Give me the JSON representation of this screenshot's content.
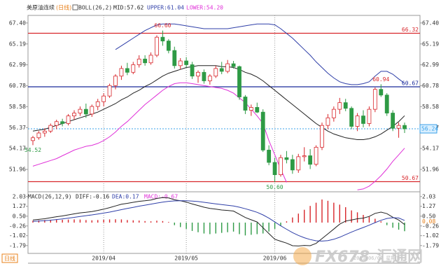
{
  "chart_data": [
    {
      "type": "candlestick",
      "title": "美原油连续",
      "subtitle": "(日线)",
      "indicator": "BOLL(26,2)",
      "categories": [
        null,
        null,
        null,
        null,
        null,
        null,
        null,
        null,
        null,
        null,
        null,
        null,
        "2019/04",
        null,
        null,
        null,
        null,
        null,
        null,
        null,
        null,
        null,
        null,
        null,
        null,
        null,
        "2019/05",
        null,
        null,
        null,
        null,
        null,
        null,
        null,
        null,
        null,
        null,
        null,
        null,
        null,
        null,
        "2019/06",
        null,
        null,
        null,
        null,
        null,
        null,
        null,
        null,
        null,
        null,
        null,
        null,
        null,
        null,
        null,
        null,
        null,
        null,
        null,
        null,
        null,
        null
      ],
      "open": [
        55.0,
        55.3,
        55.8,
        56.0,
        56.6,
        57.0,
        56.8,
        57.6,
        57.9,
        58.3,
        57.8,
        58.6,
        59.1,
        59.7,
        60.8,
        61.8,
        62.6,
        62.2,
        63.0,
        63.6,
        63.2,
        64.0,
        65.9,
        65.5,
        64.5,
        62.9,
        63.4,
        63.0,
        61.8,
        62.2,
        61.3,
        61.8,
        62.6,
        62.3,
        63.1,
        62.8,
        59.6,
        58.2,
        58.5,
        58.0,
        54.0,
        52.7,
        51.4,
        53.2,
        53.0,
        51.9,
        53.3,
        53.4,
        52.5,
        54.3,
        56.6,
        57.4,
        58.3,
        59.0,
        58.4,
        56.5,
        57.6,
        56.8,
        58.3,
        60.4,
        59.8,
        57.9,
        56.3,
        56.6
      ],
      "high": [
        55.5,
        56.0,
        56.3,
        56.8,
        57.2,
        57.3,
        57.8,
        58.2,
        58.6,
        58.9,
        58.8,
        59.4,
        60.0,
        61.0,
        62.0,
        62.9,
        63.2,
        63.3,
        64.0,
        64.0,
        64.3,
        66.1,
        66.6,
        65.7,
        64.9,
        63.7,
        63.8,
        63.3,
        62.4,
        62.5,
        62.0,
        62.9,
        63.3,
        63.5,
        63.4,
        62.9,
        59.8,
        58.8,
        59.0,
        58.3,
        54.5,
        53.2,
        53.5,
        53.9,
        53.5,
        53.6,
        54.3,
        54.1,
        54.5,
        56.9,
        57.8,
        58.6,
        59.5,
        59.4,
        58.6,
        57.9,
        58.2,
        58.6,
        60.6,
        60.94,
        60.0,
        58.2,
        56.9,
        56.9
      ],
      "low": [
        54.52,
        55.1,
        55.4,
        55.8,
        56.2,
        56.5,
        56.6,
        57.2,
        57.6,
        57.4,
        57.5,
        58.2,
        58.6,
        59.5,
        60.4,
        61.4,
        61.9,
        62.0,
        62.7,
        62.9,
        63.0,
        63.8,
        65.0,
        64.2,
        62.6,
        62.5,
        62.7,
        61.5,
        61.1,
        61.0,
        60.9,
        61.6,
        62.0,
        62.1,
        62.6,
        59.3,
        57.8,
        57.6,
        57.9,
        53.8,
        52.4,
        50.6,
        51.2,
        52.6,
        51.5,
        51.6,
        52.8,
        52.0,
        52.3,
        54.0,
        56.2,
        57.0,
        57.8,
        58.1,
        56.2,
        56.0,
        56.4,
        56.5,
        58.0,
        59.6,
        57.6,
        56.0,
        55.3,
        55.8
      ],
      "close": [
        55.3,
        55.8,
        56.0,
        56.6,
        57.0,
        56.8,
        57.6,
        57.9,
        58.3,
        57.8,
        58.6,
        59.1,
        59.7,
        60.8,
        61.8,
        62.6,
        62.2,
        63.0,
        63.6,
        63.2,
        64.0,
        65.9,
        65.5,
        64.5,
        62.9,
        63.4,
        63.0,
        61.8,
        62.2,
        61.3,
        61.8,
        62.6,
        62.3,
        63.1,
        62.8,
        59.6,
        58.2,
        58.5,
        58.0,
        54.0,
        52.7,
        51.4,
        53.2,
        53.0,
        51.9,
        53.3,
        53.4,
        52.5,
        54.3,
        56.6,
        57.4,
        58.3,
        59.0,
        58.4,
        56.5,
        57.6,
        56.8,
        58.3,
        60.4,
        59.8,
        57.9,
        56.3,
        56.6,
        56.24
      ],
      "up_color": "#d8262b",
      "down_color": "#2e9a45",
      "series": [
        {
          "name": "MID:57.62",
          "color": "#222222",
          "values": [
            56.0,
            56.1,
            56.2,
            56.4,
            56.6,
            56.8,
            57.0,
            57.2,
            57.4,
            57.6,
            57.8,
            58.0,
            58.3,
            58.6,
            58.9,
            59.3,
            59.6,
            60.0,
            60.3,
            60.7,
            61.0,
            61.4,
            61.8,
            62.1,
            62.3,
            62.5,
            62.7,
            62.8,
            62.9,
            62.9,
            62.9,
            62.9,
            62.8,
            62.8,
            62.7,
            62.5,
            62.2,
            62.0,
            61.7,
            61.3,
            60.8,
            60.3,
            59.8,
            59.3,
            58.8,
            58.3,
            57.8,
            57.3,
            56.8,
            56.4,
            56.0,
            55.7,
            55.5,
            55.3,
            55.2,
            55.1,
            55.1,
            55.2,
            55.4,
            55.7,
            56.1,
            56.5,
            57.0,
            57.62
          ]
        },
        {
          "name": "UPPER:61.04",
          "color": "#2f3fa8",
          "values": [
            null,
            null,
            null,
            null,
            null,
            null,
            null,
            null,
            null,
            null,
            null,
            null,
            null,
            null,
            64.6,
            65.0,
            65.4,
            65.8,
            66.2,
            66.6,
            66.9,
            67.2,
            67.3,
            67.3,
            67.3,
            67.2,
            67.1,
            67.0,
            66.9,
            66.8,
            66.8,
            66.8,
            66.8,
            66.8,
            66.9,
            67.0,
            67.1,
            67.2,
            67.3,
            67.3,
            67.3,
            67.2,
            66.8,
            66.3,
            65.8,
            65.2,
            64.6,
            64.0,
            63.3,
            62.7,
            62.1,
            61.6,
            61.2,
            61.0,
            60.9,
            60.9,
            61.0,
            61.2,
            61.8,
            62.3,
            62.3,
            62.0,
            61.5,
            61.04
          ]
        },
        {
          "name": "LOWER:54.20",
          "color": "#e031d8",
          "values": [
            52.3,
            52.5,
            52.7,
            52.9,
            53.1,
            53.4,
            53.7,
            54.0,
            54.2,
            54.4,
            54.5,
            54.7,
            55.0,
            55.4,
            55.9,
            56.5,
            57.0,
            57.6,
            58.2,
            58.8,
            59.3,
            59.8,
            60.3,
            60.7,
            61.0,
            61.1,
            61.1,
            61.0,
            60.9,
            60.8,
            60.7,
            60.6,
            60.5,
            60.3,
            60.0,
            59.5,
            59.0,
            58.3,
            57.6,
            56.8,
            55.0,
            53.5,
            52.0,
            50.6,
            null,
            null,
            null,
            null,
            null,
            null,
            null,
            null,
            null,
            null,
            null,
            49.8,
            49.9,
            50.2,
            50.7,
            51.3,
            52.0,
            52.8,
            53.5,
            54.2
          ]
        }
      ],
      "hlines": [
        {
          "value": 66.32,
          "color": "#d8262b",
          "dotted": false
        },
        {
          "value": 60.67,
          "color": "#1a2a9a",
          "dotted": false
        },
        {
          "value": 50.67,
          "color": "#d8262b",
          "dotted": false
        },
        {
          "value": 56.24,
          "color": "#3aa0e8",
          "dotted": true
        }
      ],
      "annotations": [
        {
          "value": 66.6,
          "label": "66.60",
          "on": "high"
        },
        {
          "value": 54.52,
          "label": "54.52",
          "on": "low"
        },
        {
          "value": 50.6,
          "label": "50.60",
          "on": "low"
        },
        {
          "value": 60.94,
          "label": "60.94",
          "on": "high"
        }
      ],
      "ylim": [
        49.6,
        68.2
      ],
      "yticks": [
        {
          "value": 67.4,
          "label": "67.40"
        },
        65.19,
        62.99,
        60.78,
        58.58,
        56.37,
        54.17,
        51.96
      ],
      "grid": true,
      "footer": "日线"
    },
    {
      "type": "macd",
      "title": "MACD(26,12,9)",
      "series": [
        {
          "name": "DIFF:-0.16",
          "color": "#222222",
          "values": [
            0.2,
            0.25,
            0.3,
            0.38,
            0.46,
            0.52,
            0.6,
            0.68,
            0.76,
            0.8,
            0.86,
            0.95,
            1.05,
            1.17,
            1.3,
            1.43,
            1.5,
            1.58,
            1.66,
            1.7,
            1.76,
            1.88,
            1.95,
            1.92,
            1.78,
            1.7,
            1.6,
            1.45,
            1.33,
            1.2,
            1.1,
            1.05,
            0.98,
            0.95,
            0.9,
            0.65,
            0.4,
            0.22,
            0.05,
            -0.4,
            -0.85,
            -1.3,
            -1.45,
            -1.6,
            -1.8,
            -1.82,
            -1.78,
            -1.8,
            -1.62,
            -1.25,
            -0.88,
            -0.5,
            -0.12,
            0.12,
            0.2,
            0.3,
            0.35,
            0.48,
            0.72,
            0.82,
            0.7,
            0.42,
            0.2,
            -0.16
          ]
        },
        {
          "name": "DEA:0.17",
          "color": "#2f3fa8",
          "values": [
            0.1,
            0.12,
            0.15,
            0.19,
            0.24,
            0.29,
            0.35,
            0.41,
            0.48,
            0.54,
            0.6,
            0.67,
            0.74,
            0.82,
            0.91,
            1.01,
            1.1,
            1.19,
            1.28,
            1.36,
            1.44,
            1.52,
            1.6,
            1.66,
            1.69,
            1.7,
            1.7,
            1.68,
            1.64,
            1.58,
            1.52,
            1.46,
            1.4,
            1.35,
            1.3,
            1.2,
            1.08,
            0.95,
            0.8,
            0.6,
            0.35,
            0.05,
            -0.25,
            -0.52,
            -0.78,
            -1.0,
            -1.18,
            -1.32,
            -1.42,
            -1.44,
            -1.4,
            -1.3,
            -1.14,
            -0.94,
            -0.74,
            -0.55,
            -0.38,
            -0.2,
            0.0,
            0.18,
            0.32,
            0.38,
            0.36,
            0.17
          ]
        }
      ],
      "histogram": {
        "name": "MACD:-0.67",
        "color": "#e031d8",
        "up_color": "#d8262b",
        "down_color": "#2e9a45",
        "values": [
          0.15,
          0.18,
          0.2,
          0.22,
          0.24,
          0.22,
          0.24,
          0.25,
          0.24,
          0.2,
          0.18,
          0.2,
          0.22,
          0.25,
          0.26,
          0.25,
          0.2,
          0.18,
          0.16,
          0.12,
          0.1,
          0.15,
          0.12,
          0.05,
          -0.2,
          -0.35,
          -0.5,
          -0.65,
          -0.75,
          -0.85,
          -0.9,
          -0.85,
          -0.8,
          -0.75,
          -0.7,
          -0.9,
          -1.0,
          -0.95,
          -0.9,
          -0.85,
          -0.7,
          -0.5,
          -0.25,
          0.1,
          0.4,
          0.7,
          1.0,
          1.3,
          1.55,
          1.8,
          1.7,
          1.55,
          1.4,
          1.2,
          0.95,
          0.8,
          0.6,
          0.45,
          0.3,
          0.1,
          -0.2,
          -0.4,
          -0.55,
          -0.67
        ]
      },
      "marker": {
        "value": 0.08,
        "color": "#e8801a"
      },
      "ylim": [
        -2.4,
        2.4
      ],
      "yticks": [
        2.03,
        1.27,
        {
          "value": 0.5,
          "label": "0.50"
        },
        -0.26,
        -1.02,
        -1.79
      ]
    }
  ],
  "watermark": {
    "logo": "FX678",
    "name": "汇通网",
    "stamp": "2019/06/07 星期五"
  }
}
